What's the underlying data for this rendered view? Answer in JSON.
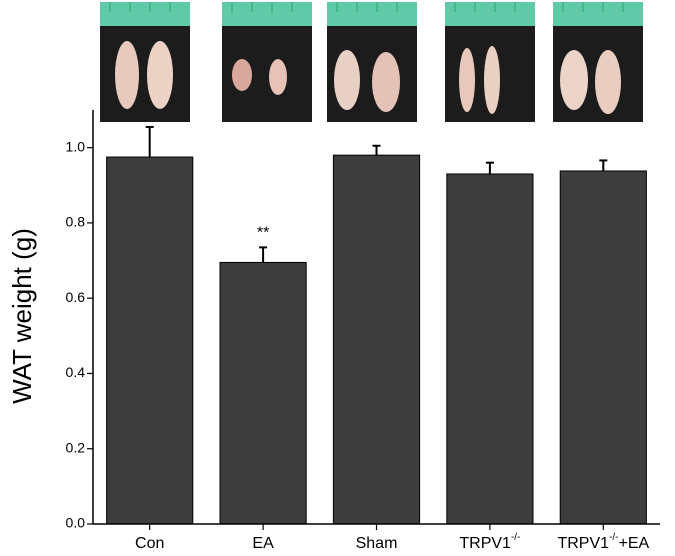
{
  "chart_data": {
    "type": "bar",
    "y_label": "WAT weight (g)",
    "categories": [
      "Con",
      "EA",
      "Sham",
      "TRPV1-/-",
      "TRPV1-/-+EA"
    ],
    "values": [
      0.975,
      0.695,
      0.98,
      0.93,
      0.938
    ],
    "errors": [
      0.08,
      0.04,
      0.025,
      0.03,
      0.028
    ],
    "color": "#3d3d3d",
    "annotations": [
      {
        "category": 1,
        "text": "**"
      }
    ],
    "ylim": [
      0,
      1.1
    ],
    "yticks": [
      {
        "value": 0,
        "label": "0.0"
      },
      0.2,
      0.4,
      0.6,
      0.8,
      {
        "value": 1,
        "label": "1.0"
      }
    ]
  }
}
